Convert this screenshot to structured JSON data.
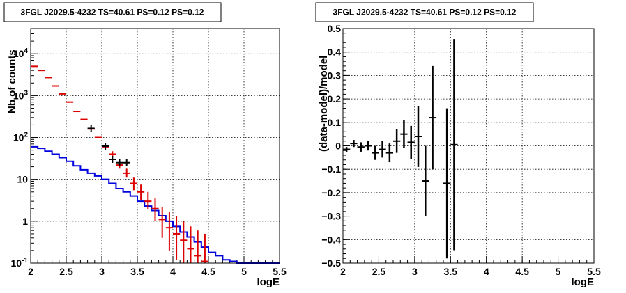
{
  "chart_data": [
    {
      "type": "line",
      "title": "3FGL J2029.5-4232 TS=40.61 PS=0.12 PS=0.12",
      "xlabel": "logE",
      "ylabel": "Nb of counts",
      "xlim": [
        2,
        5.5
      ],
      "ylim": [
        0.1,
        40000
      ],
      "log_y": true,
      "grid": true,
      "x_ticks": [
        "2",
        "2.5",
        "3",
        "3.5",
        "4",
        "4.5",
        "5",
        "5.5"
      ],
      "y_ticks": [
        {
          "value": 0.1,
          "base": "10",
          "exp": "-1"
        },
        {
          "value": 1,
          "base": "1",
          "exp": ""
        },
        {
          "value": 10,
          "base": "10",
          "exp": ""
        },
        {
          "value": 100,
          "base": "10",
          "exp": "2"
        },
        {
          "value": 1000,
          "base": "10",
          "exp": "3"
        },
        {
          "value": 10000,
          "base": "10",
          "exp": "4"
        }
      ],
      "colors": {
        "data": "#000000",
        "model": "#dd0000",
        "background": "#0000dd"
      },
      "bin_width": 0.1,
      "x": [
        2.05,
        2.15,
        2.25,
        2.35,
        2.45,
        2.55,
        2.65,
        2.75,
        2.85,
        2.95,
        3.05,
        3.15,
        3.25,
        3.35,
        3.45,
        3.55,
        3.65,
        3.75,
        3.85,
        3.95,
        4.05,
        4.15,
        4.25,
        4.35,
        4.45
      ],
      "data_counts": [
        null,
        null,
        null,
        null,
        null,
        null,
        null,
        null,
        165,
        null,
        62,
        30,
        25,
        25,
        null,
        null,
        null,
        null,
        null,
        null,
        null,
        null,
        null,
        null,
        null
      ],
      "model_counts": [
        5000,
        4000,
        2700,
        1700,
        1100,
        700,
        420,
        270,
        160,
        100,
        60,
        40,
        22,
        14,
        8,
        5,
        3,
        2,
        1.1,
        0.7,
        0.5,
        0.35,
        0.22,
        0.15,
        0.11
      ],
      "model_err_low": [
        null,
        null,
        null,
        null,
        null,
        null,
        null,
        null,
        null,
        null,
        null,
        33,
        18,
        11,
        5.5,
        3.2,
        1.9,
        1.0,
        0.4,
        0.2,
        0.12,
        0.1,
        0.1,
        0.1,
        0.1
      ],
      "model_err_high": [
        null,
        null,
        null,
        null,
        null,
        null,
        null,
        null,
        null,
        null,
        null,
        47,
        28,
        18,
        11,
        7.5,
        5,
        3.5,
        2.2,
        1.7,
        1.3,
        1.0,
        0.75,
        0.6,
        0.5
      ],
      "background_counts": [
        60,
        55,
        47,
        40,
        33,
        27,
        21,
        17,
        14,
        12,
        10,
        8,
        6,
        5,
        4,
        3,
        2.3,
        1.8,
        1.35,
        1.0,
        0.75,
        0.55,
        0.42,
        0.32,
        0.24,
        0.18,
        0.15,
        0.12,
        0.11,
        0.1,
        0.1,
        0.1,
        0.1,
        0.1,
        0.1
      ]
    },
    {
      "type": "scatter",
      "title": "3FGL J2029.5-4232 TS=40.61 PS=0.12 PS=0.12",
      "xlabel": "logE",
      "ylabel": "(data-model)/model",
      "xlim": [
        2,
        5.5
      ],
      "ylim": [
        -0.5,
        0.5
      ],
      "grid": true,
      "x_ticks": [
        "2",
        "2.5",
        "3",
        "3.5",
        "4",
        "4.5",
        "5",
        "5.5"
      ],
      "y_ticks": [
        "−0.5",
        "−0.4",
        "−0.3",
        "−0.2",
        "−0.1",
        "0",
        "0.1",
        "0.2",
        "0.3",
        "0.4",
        "0.5"
      ],
      "bin_width": 0.1,
      "x": [
        2.05,
        2.15,
        2.25,
        2.35,
        2.45,
        2.55,
        2.65,
        2.75,
        2.85,
        2.95,
        3.05,
        3.15,
        3.25,
        3.45,
        3.55
      ],
      "y": [
        -0.015,
        0.01,
        -0.005,
        0.0,
        -0.03,
        -0.015,
        -0.03,
        0.02,
        0.05,
        0.015,
        0.04,
        -0.15,
        0.12,
        -0.16,
        0.005
      ],
      "err": [
        0.01,
        0.015,
        0.02,
        0.02,
        0.03,
        0.035,
        0.04,
        0.05,
        0.06,
        0.07,
        0.13,
        0.15,
        0.22,
        0.32,
        0.45
      ]
    }
  ]
}
